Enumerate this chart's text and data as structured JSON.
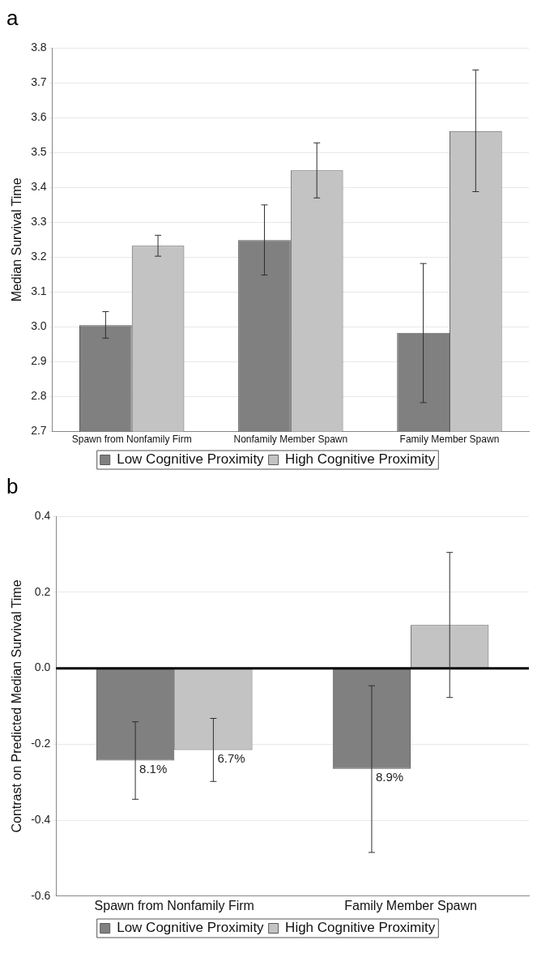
{
  "chart_data": [
    {
      "type": "bar",
      "title": "a",
      "ylabel": "Median Survival Time",
      "categories": [
        "Spawn from Nonfamily Firm",
        "Nonfamily Member Spawn",
        "Family Member Spawn"
      ],
      "series": [
        {
          "name": "Low Cognitive Proximity",
          "color": "#808080",
          "values": [
            3.005,
            3.249,
            2.983
          ],
          "errors": [
            [
              2.968,
              3.044
            ],
            [
              3.149,
              3.35
            ],
            [
              2.783,
              3.182
            ]
          ]
        },
        {
          "name": "High Cognitive Proximity",
          "color": "#c3c3c3",
          "values": [
            3.233,
            3.449,
            3.562
          ],
          "errors": [
            [
              3.203,
              3.263
            ],
            [
              3.37,
              3.528
            ],
            [
              3.388,
              3.737
            ]
          ]
        }
      ],
      "ylim": [
        2.7,
        3.8
      ],
      "yticks": [
        {
          "value": 2.7,
          "label": "2.7"
        },
        {
          "value": 2.8,
          "label": "2.8"
        },
        {
          "value": 2.9,
          "label": "2.9"
        },
        {
          "value": 3,
          "label": "3.0"
        },
        {
          "value": 3.1,
          "label": "3.1"
        },
        {
          "value": 3.2,
          "label": "3.2"
        },
        {
          "value": 3.3,
          "label": "3.3"
        },
        {
          "value": 3.4,
          "label": "3.4"
        },
        {
          "value": 3.5,
          "label": "3.5"
        },
        {
          "value": 3.6,
          "label": "3.6"
        },
        {
          "value": 3.7,
          "label": "3.7"
        },
        {
          "value": 3.8,
          "label": "3.8"
        }
      ],
      "grid": "y",
      "legend": "bottom"
    },
    {
      "type": "bar",
      "title": "b",
      "ylabel": "Contrast on Predicted Median Survival Time",
      "categories": [
        "Spawn from Nonfamily Firm",
        "Family Member Spawn"
      ],
      "series": [
        {
          "name": "Low Cognitive Proximity",
          "color": "#808080",
          "values": [
            -0.243,
            -0.265
          ],
          "errors": [
            [
              -0.345,
              -0.141
            ],
            [
              -0.485,
              -0.046
            ]
          ]
        },
        {
          "name": "High Cognitive Proximity",
          "color": "#c3c3c3",
          "values": [
            -0.215,
            0.114
          ],
          "errors": [
            [
              -0.298,
              -0.132
            ],
            [
              -0.077,
              0.305
            ]
          ]
        }
      ],
      "annotations": [
        {
          "text": "8.1%",
          "y": -0.243
        },
        {
          "text": "6.7%",
          "y": -0.215
        },
        {
          "text": "8.9%",
          "y": -0.265
        }
      ],
      "ylim": [
        -0.6,
        0.4
      ],
      "yticks": [
        {
          "value": -0.6,
          "label": "-0.6"
        },
        {
          "value": -0.4,
          "label": "-0.4"
        },
        {
          "value": -0.2,
          "label": "-0.2"
        },
        {
          "value": 0,
          "label": "0.0"
        },
        {
          "value": 0.2,
          "label": "0.2"
        },
        {
          "value": 0.4,
          "label": "0.4"
        }
      ],
      "ref_lines": [
        {
          "axis": "y",
          "value": 0,
          "color": "#000000"
        }
      ],
      "grid": "y",
      "legend": "bottom"
    }
  ]
}
